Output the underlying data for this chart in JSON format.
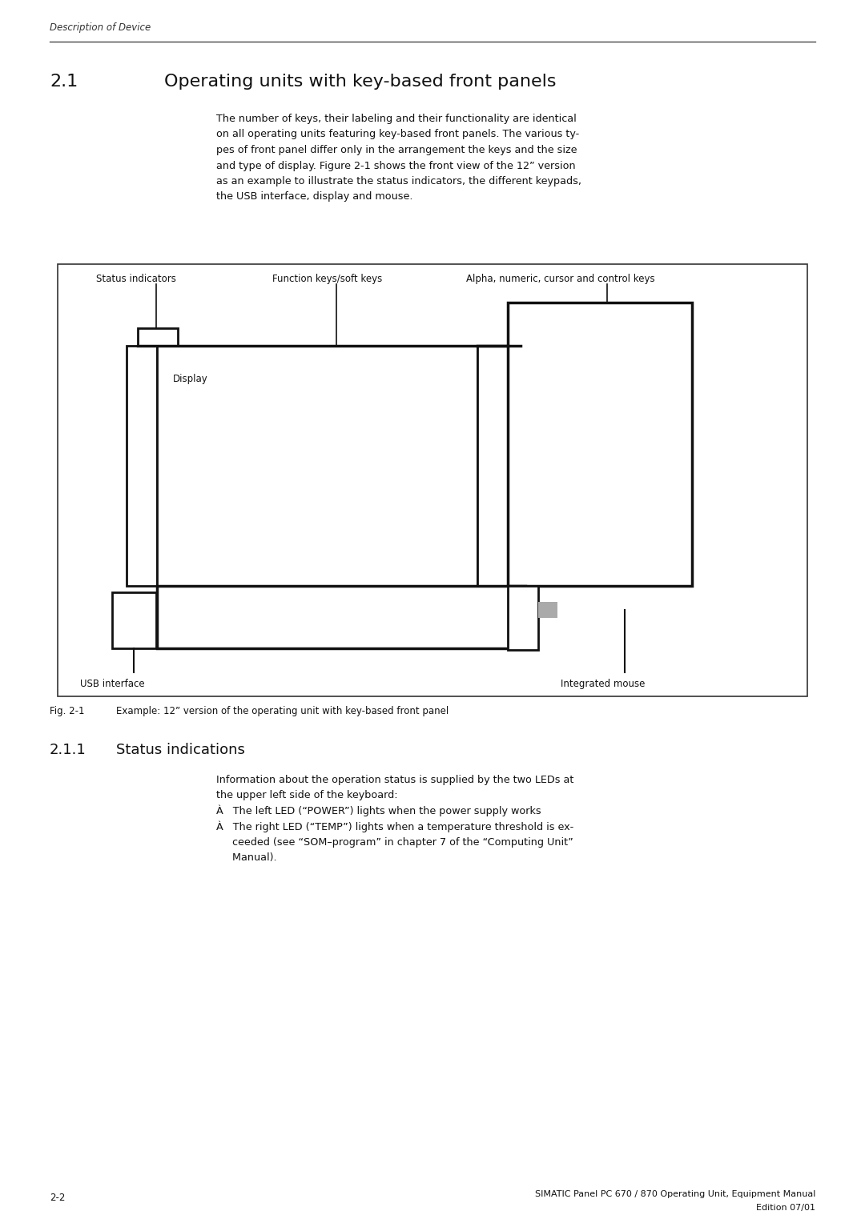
{
  "bg_color": "#ffffff",
  "page_width": 10.8,
  "page_height": 15.28,
  "header_text": "Description of Device",
  "section_title": "2.1        Operating units with key-based front panels",
  "body_text_lines": [
    "The number of keys, their labeling and their functionality are identical",
    "on all operating units featuring key-based front panels. The various ty-",
    "pes of front panel differ only in the arrangement the keys and the size",
    "and type of display. Figure 2-1 shows the front view of the 12” version",
    "as an example to illustrate the status indicators, the different keypads,",
    "the USB interface, display and mouse."
  ],
  "subsection_title": "2.1.1      Status indications",
  "status_lines": [
    "Information about the operation status is supplied by the two LEDs at",
    "the upper left side of the keyboard:",
    "À   The left LED (“POWER”) lights when the power supply works",
    "À   The right LED (“TEMP”) lights when a temperature threshold is ex-",
    "     ceeded (see “SOM–program” in chapter 7 of the “Computing Unit”",
    "     Manual)."
  ],
  "fig_caption_num": "Fig. 2-1",
  "fig_caption_text": "Example: 12” version of the operating unit with key-based front panel",
  "footer_left": "2-2",
  "footer_right_line1": "SIMATIC Panel PC 670 / 870 Operating Unit, Equipment Manual",
  "footer_right_line2": "Edition 07/01",
  "label_status": "Status indicators",
  "label_function": "Function keys/soft keys",
  "label_alpha": "Alpha, numeric, cursor and control keys",
  "label_display": "Display",
  "label_usb": "USB interface",
  "label_mouse": "Integrated mouse"
}
